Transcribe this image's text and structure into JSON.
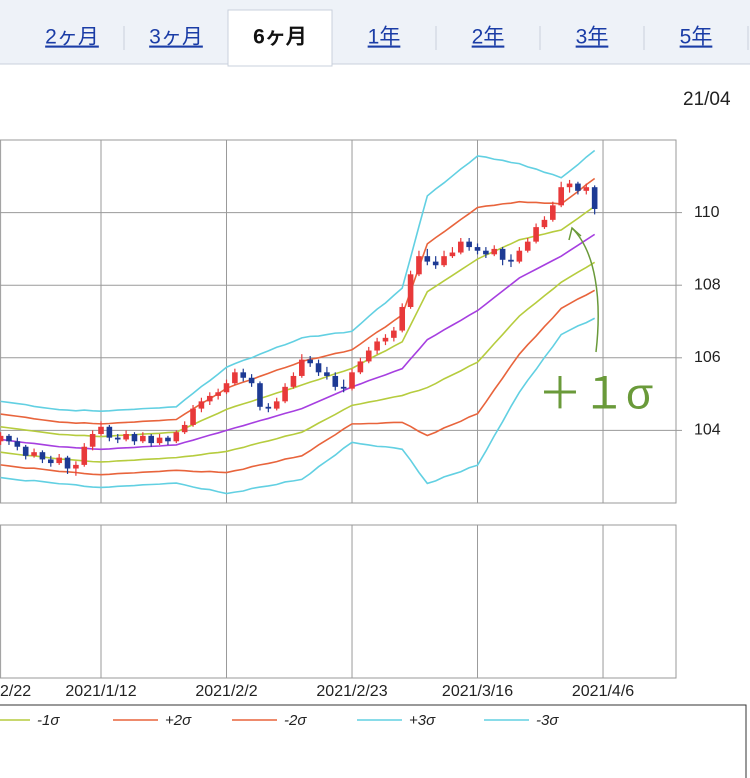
{
  "tabs": [
    "2ヶ月",
    "3ヶ月",
    "6ヶ月",
    "1年",
    "2年",
    "3年",
    "5年"
  ],
  "active_tab": 2,
  "date_label": "21/04",
  "chart_data": {
    "type": "candlestick",
    "annotation": "＋１σ",
    "categories": [
      "2/22",
      null,
      null,
      null,
      null,
      null,
      null,
      null,
      null,
      null,
      null,
      null,
      "2021/1/12",
      null,
      null,
      null,
      null,
      null,
      null,
      null,
      null,
      null,
      null,
      null,
      null,
      null,
      null,
      "2021/2/2",
      null,
      null,
      null,
      null,
      null,
      null,
      null,
      null,
      null,
      null,
      null,
      null,
      null,
      null,
      "2021/2/23",
      null,
      null,
      null,
      null,
      null,
      null,
      null,
      null,
      null,
      null,
      null,
      null,
      null,
      null,
      "2021/3/16",
      null,
      null,
      null,
      null,
      null,
      null,
      null,
      null,
      null,
      null,
      null,
      null,
      null,
      null,
      "2021/4/6"
    ],
    "open": [
      103.7,
      103.85,
      103.7,
      103.55,
      103.3,
      103.4,
      103.2,
      103.1,
      103.25,
      102.95,
      103.05,
      103.55,
      103.9,
      104.1,
      103.8,
      103.75,
      103.9,
      103.7,
      103.85,
      103.65,
      103.8,
      103.7,
      103.95,
      104.15,
      104.6,
      104.8,
      104.95,
      105.05,
      105.3,
      105.6,
      105.45,
      105.3,
      104.65,
      104.6,
      104.8,
      105.2,
      105.5,
      105.95,
      105.85,
      105.6,
      105.5,
      105.2,
      105.15,
      105.6,
      105.9,
      106.2,
      106.45,
      106.55,
      106.75,
      107.4,
      108.3,
      108.8,
      108.65,
      108.55,
      108.8,
      108.9,
      109.2,
      109.05,
      108.95,
      108.85,
      109.0,
      108.7,
      108.65,
      108.95,
      109.2,
      109.6,
      109.8,
      110.2,
      110.7,
      110.8,
      110.6,
      110.7,
      null
    ],
    "high": [
      103.95,
      103.9,
      103.8,
      103.6,
      103.5,
      103.45,
      103.3,
      103.35,
      103.3,
      103.15,
      103.65,
      104.0,
      104.25,
      104.15,
      103.9,
      104.0,
      103.95,
      103.95,
      103.9,
      103.9,
      103.85,
      104.0,
      104.25,
      104.7,
      104.9,
      105.05,
      105.15,
      105.4,
      105.7,
      105.7,
      105.55,
      105.35,
      104.75,
      104.9,
      105.3,
      105.6,
      106.1,
      106.05,
      105.95,
      105.75,
      105.6,
      105.4,
      105.7,
      106.0,
      106.3,
      106.55,
      106.65,
      106.85,
      107.5,
      108.4,
      108.95,
      109.0,
      108.8,
      108.95,
      109.05,
      109.3,
      109.3,
      109.15,
      109.05,
      109.1,
      109.05,
      108.85,
      109.05,
      109.3,
      109.7,
      109.9,
      110.3,
      110.85,
      110.9,
      110.85,
      110.8,
      110.75,
      null
    ],
    "low": [
      103.6,
      103.6,
      103.45,
      103.2,
      103.25,
      103.1,
      103.0,
      103.05,
      102.8,
      102.75,
      103.0,
      103.45,
      103.85,
      103.7,
      103.65,
      103.7,
      103.6,
      103.65,
      103.55,
      103.6,
      103.6,
      103.65,
      103.9,
      104.1,
      104.5,
      104.7,
      104.85,
      105.0,
      105.25,
      105.35,
      105.2,
      104.55,
      104.5,
      104.55,
      104.75,
      105.15,
      105.45,
      105.75,
      105.5,
      105.4,
      105.1,
      105.05,
      105.1,
      105.55,
      105.85,
      106.1,
      106.35,
      106.45,
      106.7,
      107.35,
      108.25,
      108.55,
      108.45,
      108.5,
      108.75,
      108.85,
      108.95,
      108.85,
      108.75,
      108.8,
      108.55,
      108.5,
      108.6,
      108.9,
      109.15,
      109.55,
      109.75,
      110.15,
      110.55,
      110.5,
      110.5,
      109.95,
      null
    ],
    "close": [
      103.85,
      103.7,
      103.55,
      103.3,
      103.4,
      103.2,
      103.1,
      103.25,
      102.95,
      103.05,
      103.55,
      103.9,
      104.1,
      103.8,
      103.75,
      103.9,
      103.7,
      103.85,
      103.65,
      103.8,
      103.7,
      103.95,
      104.15,
      104.6,
      104.8,
      104.95,
      105.05,
      105.3,
      105.6,
      105.45,
      105.3,
      104.65,
      104.6,
      104.8,
      105.2,
      105.5,
      105.95,
      105.85,
      105.6,
      105.5,
      105.2,
      105.15,
      105.6,
      105.9,
      106.2,
      106.45,
      106.55,
      106.75,
      107.4,
      108.3,
      108.8,
      108.65,
      108.55,
      108.8,
      108.9,
      109.2,
      109.05,
      108.95,
      108.85,
      109.0,
      108.7,
      108.65,
      108.95,
      109.2,
      109.6,
      109.8,
      110.2,
      110.7,
      110.8,
      110.6,
      110.7,
      110.1,
      null
    ],
    "up_color": "#e8393a",
    "down_color": "#1d3a94",
    "series": [
      {
        "color": "#a63fe0",
        "values": [
          103.75,
          103.72,
          103.69,
          103.66,
          103.64,
          103.61,
          103.58,
          103.55,
          103.54,
          103.52,
          103.51,
          103.49,
          103.48,
          103.49,
          103.51,
          103.52,
          103.53,
          103.55,
          103.56,
          103.57,
          103.59,
          103.6,
          103.67,
          103.73,
          103.8,
          103.87,
          103.93,
          104.0,
          104.07,
          104.13,
          104.2,
          104.27,
          104.33,
          104.4,
          104.47,
          104.53,
          104.6,
          104.7,
          104.8,
          104.9,
          105.0,
          105.1,
          105.2,
          105.28,
          105.37,
          105.45,
          105.53,
          105.62,
          105.7,
          105.97,
          106.23,
          106.5,
          106.63,
          106.77,
          106.9,
          107.03,
          107.17,
          107.3,
          107.48,
          107.66,
          107.84,
          108.02,
          108.2,
          108.32,
          108.44,
          108.56,
          108.68,
          108.8,
          108.95,
          109.1,
          109.25,
          109.4,
          null
        ]
      },
      {
        "color": "#b6cc3e",
        "values": [
          104.1,
          104.07,
          104.04,
          104.01,
          103.98,
          103.95,
          103.92,
          103.89,
          103.88,
          103.86,
          103.86,
          103.84,
          103.83,
          103.84,
          103.86,
          103.87,
          103.88,
          103.9,
          103.91,
          103.92,
          103.94,
          103.95,
          104.06,
          104.16,
          104.27,
          104.37,
          104.47,
          104.58,
          104.66,
          104.73,
          104.8,
          104.88,
          104.95,
          105.03,
          105.1,
          105.17,
          105.25,
          105.33,
          105.4,
          105.48,
          105.56,
          105.63,
          105.71,
          105.83,
          105.96,
          106.08,
          106.19,
          106.32,
          106.44,
          106.9,
          107.36,
          107.82,
          107.97,
          108.12,
          108.27,
          108.42,
          108.57,
          108.72,
          108.83,
          108.93,
          109.04,
          109.14,
          109.25,
          109.3,
          109.36,
          109.41,
          109.47,
          109.52,
          109.68,
          109.84,
          110.01,
          110.17,
          null
        ]
      },
      {
        "name": "-1σ",
        "color": "#b6cc3e",
        "values": [
          103.4,
          103.37,
          103.34,
          103.31,
          103.3,
          103.27,
          103.24,
          103.21,
          103.2,
          103.18,
          103.16,
          103.14,
          103.13,
          103.14,
          103.16,
          103.17,
          103.18,
          103.2,
          103.21,
          103.22,
          103.24,
          103.25,
          103.28,
          103.3,
          103.33,
          103.37,
          103.39,
          103.42,
          103.48,
          103.53,
          103.6,
          103.66,
          103.71,
          103.77,
          103.84,
          103.89,
          103.95,
          104.07,
          104.2,
          104.32,
          104.44,
          104.57,
          104.69,
          104.73,
          104.78,
          104.82,
          104.87,
          104.92,
          104.96,
          105.04,
          105.1,
          105.18,
          105.29,
          105.42,
          105.53,
          105.64,
          105.77,
          105.88,
          106.13,
          106.39,
          106.64,
          106.9,
          107.15,
          107.34,
          107.52,
          107.71,
          107.89,
          108.08,
          108.22,
          108.36,
          108.49,
          108.63,
          null
        ]
      },
      {
        "name": "+2σ",
        "color": "#e8643c",
        "values": [
          104.45,
          104.42,
          104.39,
          104.36,
          104.32,
          104.29,
          104.26,
          104.23,
          104.22,
          104.2,
          104.21,
          104.19,
          104.18,
          104.19,
          104.21,
          104.22,
          104.23,
          104.25,
          104.26,
          104.27,
          104.29,
          104.3,
          104.45,
          104.59,
          104.74,
          104.87,
          105.01,
          105.16,
          105.25,
          105.33,
          105.4,
          105.49,
          105.57,
          105.66,
          105.73,
          105.81,
          105.9,
          105.96,
          106.0,
          106.06,
          106.12,
          106.16,
          106.22,
          106.38,
          106.55,
          106.71,
          106.85,
          107.02,
          107.18,
          107.83,
          108.49,
          109.14,
          109.31,
          109.47,
          109.64,
          109.81,
          109.97,
          110.14,
          110.18,
          110.2,
          110.24,
          110.26,
          110.3,
          110.28,
          110.28,
          110.26,
          110.26,
          110.24,
          110.41,
          110.58,
          110.77,
          110.94,
          null
        ]
      },
      {
        "name": "-2σ",
        "color": "#e8643c",
        "values": [
          103.05,
          103.02,
          102.99,
          102.96,
          102.96,
          102.93,
          102.9,
          102.87,
          102.86,
          102.84,
          102.81,
          102.79,
          102.78,
          102.79,
          102.81,
          102.82,
          102.83,
          102.85,
          102.86,
          102.87,
          102.89,
          102.9,
          102.89,
          102.87,
          102.86,
          102.87,
          102.85,
          102.84,
          102.89,
          102.93,
          103.0,
          103.05,
          103.09,
          103.14,
          103.21,
          103.25,
          103.3,
          103.44,
          103.6,
          103.74,
          103.88,
          104.04,
          104.18,
          104.18,
          104.19,
          104.19,
          104.21,
          104.22,
          104.22,
          104.11,
          103.97,
          103.86,
          103.95,
          104.07,
          104.16,
          104.25,
          104.37,
          104.46,
          104.78,
          105.12,
          105.44,
          105.78,
          106.1,
          106.36,
          106.6,
          106.86,
          107.1,
          107.36,
          107.49,
          107.62,
          107.73,
          107.86,
          null
        ]
      },
      {
        "name": "+3σ",
        "color": "#62d0e2",
        "values": [
          104.8,
          104.77,
          104.74,
          104.71,
          104.66,
          104.63,
          104.6,
          104.57,
          104.56,
          104.54,
          104.56,
          104.54,
          104.53,
          104.54,
          104.56,
          104.57,
          104.58,
          104.6,
          104.61,
          104.62,
          104.64,
          104.65,
          104.84,
          105.02,
          105.21,
          105.37,
          105.55,
          105.74,
          105.84,
          105.93,
          106.0,
          106.1,
          106.19,
          106.29,
          106.36,
          106.45,
          106.55,
          106.59,
          106.6,
          106.64,
          106.68,
          106.69,
          106.73,
          106.93,
          107.14,
          107.34,
          107.51,
          107.72,
          107.92,
          108.76,
          109.62,
          110.46,
          110.65,
          110.82,
          111.01,
          111.2,
          111.37,
          111.56,
          111.53,
          111.47,
          111.44,
          111.38,
          111.35,
          111.26,
          111.2,
          111.11,
          111.05,
          110.96,
          111.14,
          111.32,
          111.53,
          111.71,
          null
        ]
      },
      {
        "name": "-3σ",
        "color": "#62d0e2",
        "values": [
          102.7,
          102.67,
          102.64,
          102.61,
          102.62,
          102.59,
          102.56,
          102.53,
          102.52,
          102.5,
          102.46,
          102.44,
          102.43,
          102.44,
          102.46,
          102.47,
          102.48,
          102.5,
          102.51,
          102.52,
          102.54,
          102.55,
          102.5,
          102.44,
          102.39,
          102.37,
          102.31,
          102.26,
          102.3,
          102.33,
          102.4,
          102.44,
          102.47,
          102.51,
          102.58,
          102.61,
          102.65,
          102.81,
          103.0,
          103.16,
          103.32,
          103.51,
          103.67,
          103.63,
          103.6,
          103.56,
          103.55,
          103.52,
          103.48,
          103.18,
          102.84,
          102.54,
          102.61,
          102.72,
          102.79,
          102.86,
          102.97,
          103.04,
          103.43,
          103.85,
          104.24,
          104.66,
          105.05,
          105.38,
          105.68,
          106.01,
          106.31,
          106.64,
          106.76,
          106.88,
          106.97,
          107.09,
          null
        ]
      }
    ],
    "ylim": [
      102,
      112
    ],
    "yticks": [
      104,
      106,
      108,
      110
    ],
    "grid": true
  }
}
